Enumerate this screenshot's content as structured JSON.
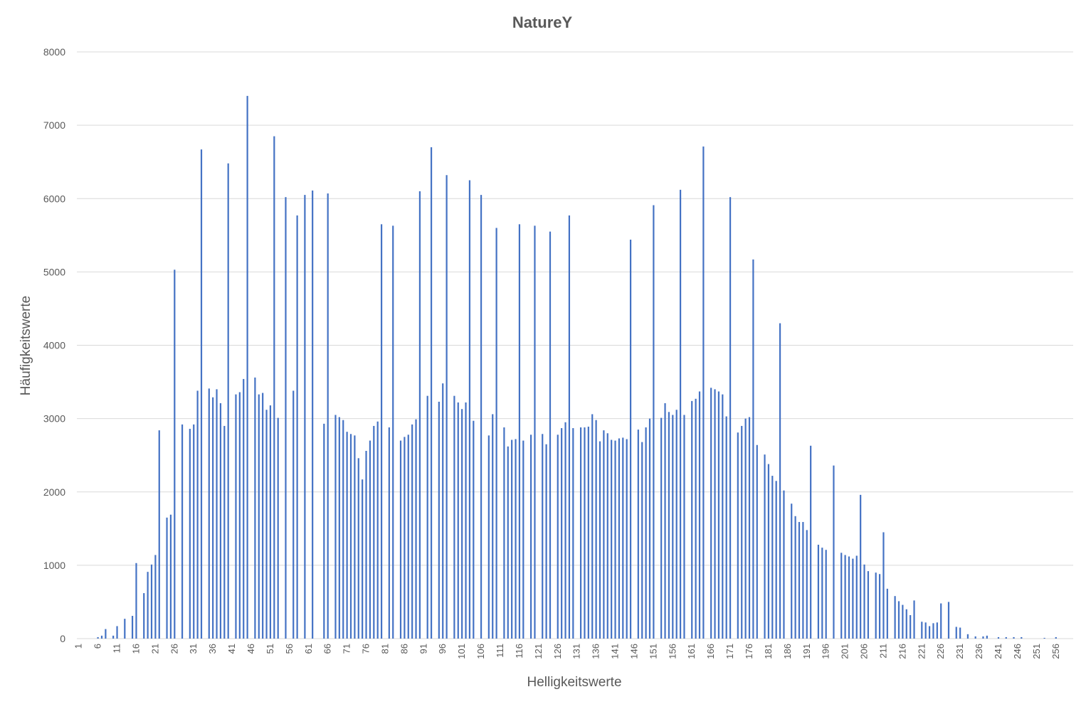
{
  "chart_data": {
    "type": "bar",
    "title": "NatureY",
    "xlabel": "Helligkeitswerte",
    "ylabel": "Häufigkeitswerte",
    "ylim": [
      0,
      8000
    ],
    "yticks": [
      0,
      1000,
      2000,
      3000,
      4000,
      5000,
      6000,
      7000,
      8000
    ],
    "grid": true,
    "legend": "none",
    "bar_color": "#4472c4",
    "categories_range": [
      1,
      256
    ],
    "x_tick_labels": [
      "1",
      "6",
      "11",
      "16",
      "21",
      "26",
      "31",
      "36",
      "41",
      "46",
      "51",
      "56",
      "61",
      "66",
      "71",
      "76",
      "81",
      "86",
      "91",
      "96",
      "101",
      "106",
      "111",
      "116",
      "121",
      "126",
      "131",
      "136",
      "141",
      "146",
      "151",
      "156",
      "161",
      "166",
      "171",
      "176",
      "181",
      "186",
      "191",
      "196",
      "201",
      "206",
      "211",
      "216",
      "221",
      "226",
      "231",
      "236",
      "241",
      "246",
      "251",
      "256"
    ],
    "values": [
      0,
      0,
      0,
      0,
      0,
      20,
      40,
      130,
      0,
      40,
      170,
      0,
      270,
      0,
      310,
      1030,
      0,
      620,
      910,
      1010,
      1140,
      2840,
      0,
      1650,
      1690,
      5030,
      0,
      2920,
      0,
      2860,
      2920,
      3380,
      6670,
      0,
      3410,
      3290,
      3400,
      3210,
      2900,
      6480,
      0,
      3330,
      3360,
      3540,
      7400,
      0,
      3560,
      3330,
      3350,
      3120,
      3180,
      6850,
      3010,
      0,
      6020,
      0,
      3380,
      5770,
      0,
      6050,
      0,
      6110,
      0,
      0,
      2930,
      6070,
      0,
      3050,
      3020,
      2980,
      2820,
      2790,
      2770,
      2460,
      2170,
      2560,
      2700,
      2900,
      2960,
      5650,
      0,
      2880,
      5630,
      0,
      2700,
      2750,
      2780,
      2920,
      2990,
      6100,
      0,
      3310,
      6700,
      0,
      3230,
      3480,
      6320,
      0,
      3310,
      3220,
      3130,
      3220,
      6250,
      2970,
      0,
      6050,
      0,
      2770,
      3060,
      5600,
      0,
      2880,
      2620,
      2710,
      2720,
      5650,
      2700,
      0,
      2780,
      5630,
      0,
      2790,
      2650,
      5550,
      0,
      2780,
      2870,
      2950,
      5770,
      2870,
      0,
      2880,
      2880,
      2890,
      3060,
      2980,
      2690,
      2840,
      2800,
      2710,
      2700,
      2730,
      2740,
      2720,
      5440,
      0,
      2850,
      2680,
      2880,
      3000,
      5910,
      0,
      3010,
      3210,
      3090,
      3050,
      3120,
      6120,
      3050,
      0,
      3240,
      3270,
      3370,
      6710,
      0,
      3420,
      3400,
      3370,
      3330,
      3030,
      6020,
      0,
      2810,
      2900,
      3000,
      3020,
      5170,
      2640,
      0,
      2510,
      2380,
      2220,
      2150,
      4300,
      2020,
      0,
      1840,
      1670,
      1590,
      1590,
      1480,
      2630,
      0,
      1280,
      1240,
      1210,
      0,
      2360,
      0,
      1170,
      1140,
      1120,
      1090,
      1130,
      1960,
      1010,
      920,
      0,
      900,
      880,
      1450,
      680,
      0,
      580,
      510,
      460,
      400,
      320,
      520,
      0,
      230,
      220,
      170,
      210,
      220,
      480,
      0,
      500,
      0,
      160,
      150,
      0,
      60,
      0,
      30,
      0,
      30,
      40,
      0,
      0,
      20,
      0,
      20,
      0,
      20,
      0,
      20,
      0,
      0,
      0,
      0,
      0,
      10,
      0,
      0,
      20,
      0,
      0,
      0,
      0
    ]
  }
}
